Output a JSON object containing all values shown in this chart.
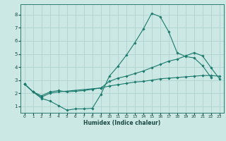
{
  "xlabel": "Humidex (Indice chaleur)",
  "bg_color": "#cce8e4",
  "grid_color": "#aacfcb",
  "line_color": "#1a7a6e",
  "xlim": [
    -0.5,
    23.5
  ],
  "ylim": [
    0.5,
    8.8
  ],
  "xticks": [
    0,
    1,
    2,
    3,
    4,
    5,
    6,
    7,
    8,
    9,
    10,
    11,
    12,
    13,
    14,
    15,
    16,
    17,
    18,
    19,
    20,
    21,
    22,
    23
  ],
  "yticks": [
    1,
    2,
    3,
    4,
    5,
    6,
    7,
    8
  ],
  "line1_x": [
    0,
    1,
    2,
    3,
    4,
    5,
    6,
    7,
    8,
    9,
    10,
    11,
    12,
    13,
    14,
    15,
    16,
    17,
    18,
    19,
    20,
    21,
    22
  ],
  "line1_y": [
    2.7,
    2.1,
    1.6,
    1.4,
    1.05,
    0.7,
    0.8,
    0.8,
    0.85,
    1.9,
    3.3,
    4.05,
    4.9,
    5.85,
    6.9,
    8.1,
    7.85,
    6.7,
    5.1,
    4.8,
    4.7,
    4.1,
    3.2
  ],
  "line2_x": [
    0,
    1,
    2,
    3,
    4,
    9,
    10,
    11,
    12,
    13,
    14,
    15,
    16,
    17,
    18,
    19,
    20,
    21,
    22,
    23
  ],
  "line2_y": [
    2.7,
    2.1,
    1.7,
    2.0,
    2.1,
    2.4,
    2.9,
    3.15,
    3.3,
    3.5,
    3.7,
    3.95,
    4.2,
    4.45,
    4.6,
    4.85,
    5.1,
    4.85,
    3.95,
    3.1
  ],
  "line3_x": [
    0,
    1,
    2,
    3,
    4,
    5,
    6,
    7,
    8,
    9,
    10,
    11,
    12,
    13,
    14,
    15,
    16,
    17,
    18,
    19,
    20,
    21,
    22,
    23
  ],
  "line3_y": [
    2.7,
    2.1,
    1.8,
    2.1,
    2.2,
    2.1,
    2.15,
    2.2,
    2.3,
    2.4,
    2.55,
    2.65,
    2.75,
    2.85,
    2.9,
    3.0,
    3.1,
    3.15,
    3.2,
    3.25,
    3.3,
    3.35,
    3.35,
    3.3
  ]
}
